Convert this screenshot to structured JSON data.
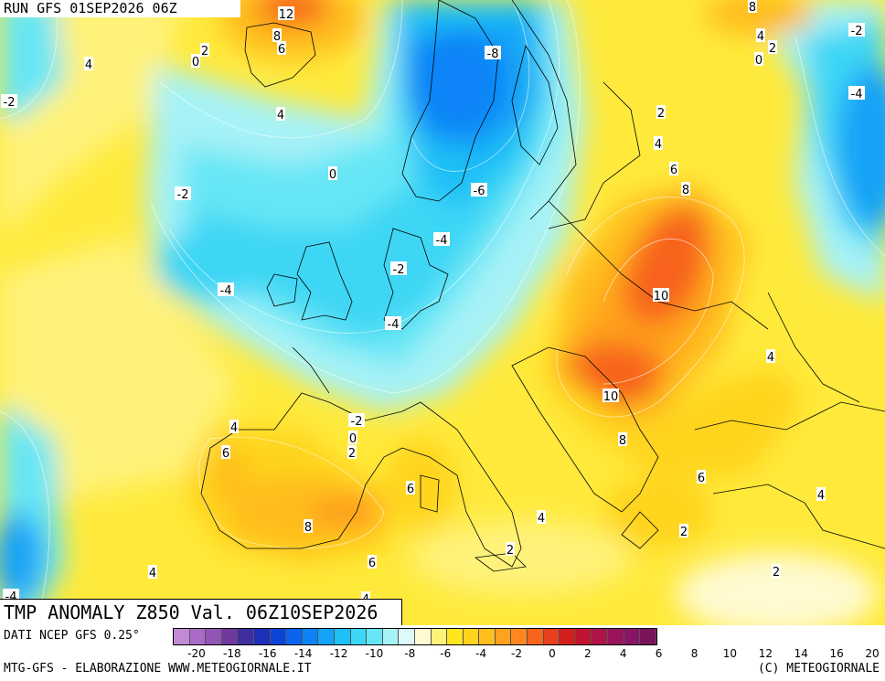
{
  "run_label": "RUN GFS 01SEP2026 06Z",
  "title": "TMP ANOMALY Z850 Val. 06Z10SEP2026",
  "source": "DATI NCEP GFS 0.25°",
  "credit": "MTG-GFS - ELABORAZIONE WWW.METEOGIORNALE.IT",
  "copyright": "(C) METEOGIORNALE",
  "legend": {
    "ticks": [
      "-20",
      "-18",
      "-16",
      "-14",
      "-12",
      "-10",
      "-8",
      "-6",
      "-4",
      "-2",
      "0",
      "2",
      "4",
      "6",
      "8",
      "10",
      "12",
      "14",
      "16",
      "20"
    ],
    "colors": [
      "#c28ad4",
      "#a96bc5",
      "#9155b5",
      "#6f3aa0",
      "#3f2ea0",
      "#1e2fb8",
      "#0a45d8",
      "#0a64ee",
      "#0c84f7",
      "#13a3f7",
      "#1ec0f7",
      "#3dd6f5",
      "#66e6f5",
      "#a6f2f7",
      "#dcfafa",
      "#fffad0",
      "#fff27a",
      "#ffe51e",
      "#ffd41e",
      "#ffbd1e",
      "#ffa31e",
      "#ff871e",
      "#f7641e",
      "#e8401e",
      "#d41e1e",
      "#c21432",
      "#ad144a",
      "#99145a",
      "#8a1464",
      "#7a145a"
    ]
  },
  "contour_labels": [
    {
      "text": "12",
      "kind": "warm"
    },
    {
      "text": "8",
      "kind": "warm"
    },
    {
      "text": "6",
      "kind": "warm"
    },
    {
      "text": "2",
      "kind": "warm"
    },
    {
      "text": "0",
      "kind": "warm"
    },
    {
      "text": "4",
      "kind": "warm"
    },
    {
      "text": "-2",
      "kind": "cold"
    },
    {
      "text": "4",
      "kind": "warm"
    },
    {
      "text": "0",
      "kind": "warm"
    },
    {
      "text": "-2",
      "kind": "cold"
    },
    {
      "text": "-8",
      "kind": "cold"
    },
    {
      "text": "-6",
      "kind": "cold"
    },
    {
      "text": "-4",
      "kind": "cold"
    },
    {
      "text": "-2",
      "kind": "cold"
    },
    {
      "text": "-4",
      "kind": "cold"
    },
    {
      "text": "-4",
      "kind": "cold"
    },
    {
      "text": "8",
      "kind": "warm"
    },
    {
      "text": "4",
      "kind": "warm"
    },
    {
      "text": "2",
      "kind": "warm"
    },
    {
      "text": "0",
      "kind": "warm"
    },
    {
      "text": "-2",
      "kind": "cold"
    },
    {
      "text": "-4",
      "kind": "cold"
    },
    {
      "text": "2",
      "kind": "warm"
    },
    {
      "text": "4",
      "kind": "warm"
    },
    {
      "text": "6",
      "kind": "warm"
    },
    {
      "text": "8",
      "kind": "warm"
    },
    {
      "text": "10",
      "kind": "warm"
    },
    {
      "text": "10",
      "kind": "warm"
    },
    {
      "text": "4",
      "kind": "warm"
    },
    {
      "text": "8",
      "kind": "warm"
    },
    {
      "text": "6",
      "kind": "warm"
    },
    {
      "text": "4",
      "kind": "warm"
    },
    {
      "text": "-2",
      "kind": "cold"
    },
    {
      "text": "0",
      "kind": "warm"
    },
    {
      "text": "2",
      "kind": "warm"
    },
    {
      "text": "4",
      "kind": "warm"
    },
    {
      "text": "6",
      "kind": "warm"
    },
    {
      "text": "6",
      "kind": "warm"
    },
    {
      "text": "8",
      "kind": "warm"
    },
    {
      "text": "4",
      "kind": "warm"
    },
    {
      "text": "2",
      "kind": "warm"
    },
    {
      "text": "2",
      "kind": "warm"
    },
    {
      "text": "6",
      "kind": "warm"
    },
    {
      "text": "4",
      "kind": "warm"
    },
    {
      "text": "2",
      "kind": "warm"
    },
    {
      "text": "-4",
      "kind": "cold"
    },
    {
      "text": "4",
      "kind": "warm"
    }
  ]
}
